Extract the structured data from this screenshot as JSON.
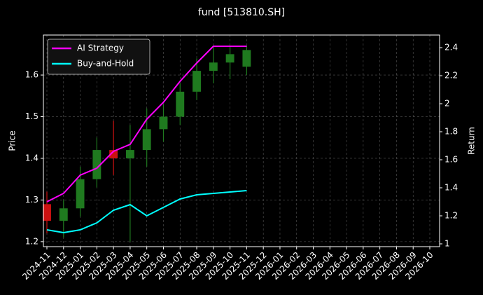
{
  "chart_data": {
    "type": "candlestick",
    "title": "fund [513810.SH]",
    "ylabel": "Price",
    "y2label": "Return",
    "categories": [
      "2024-11",
      "2024-12",
      "2025-01",
      "2025-02",
      "2025-03",
      "2025-04",
      "2025-05",
      "2025-06",
      "2025-07",
      "2025-08",
      "2025-09",
      "2025-10",
      "2025-11",
      "2025-12",
      "2026-01",
      "2026-02",
      "2026-03",
      "2026-04",
      "2026-05",
      "2026-06",
      "2026-07",
      "2026-08",
      "2026-09",
      "2026-10"
    ],
    "candles": {
      "up_color": "#1f7a1f",
      "down_color": "#cc1111",
      "open": [
        1.29,
        1.25,
        1.28,
        1.35,
        1.42,
        1.4,
        1.42,
        1.47,
        1.5,
        1.56,
        1.61,
        1.63,
        1.62,
        null,
        null,
        null,
        null,
        null,
        null,
        null,
        null,
        null,
        null,
        null
      ],
      "high": [
        1.32,
        1.3,
        1.38,
        1.45,
        1.49,
        1.48,
        1.52,
        1.53,
        1.58,
        1.64,
        1.67,
        1.67,
        1.67,
        null,
        null,
        null,
        null,
        null,
        null,
        null,
        null,
        null,
        null,
        null
      ],
      "low": [
        1.22,
        1.21,
        1.26,
        1.33,
        1.36,
        1.2,
        1.38,
        1.44,
        1.48,
        1.54,
        1.58,
        1.59,
        1.6,
        null,
        null,
        null,
        null,
        null,
        null,
        null,
        null,
        null,
        null,
        null
      ],
      "close": [
        1.25,
        1.28,
        1.35,
        1.42,
        1.4,
        1.42,
        1.47,
        1.5,
        1.56,
        1.61,
        1.63,
        1.65,
        1.66,
        null,
        null,
        null,
        null,
        null,
        null,
        null,
        null,
        null,
        null,
        null
      ]
    },
    "series": [
      {
        "name": "AI Strategy",
        "color": "#ff00ff",
        "axis": "y2",
        "values": [
          1.3,
          1.36,
          1.49,
          1.54,
          1.66,
          1.71,
          1.89,
          2.01,
          2.16,
          2.29,
          2.41,
          2.41,
          2.41,
          null,
          null,
          null,
          null,
          null,
          null,
          null,
          null,
          null,
          null,
          null
        ]
      },
      {
        "name": "Buy-and-Hold",
        "color": "#00ffff",
        "axis": "y2",
        "values": [
          1.1,
          1.08,
          1.1,
          1.15,
          1.24,
          1.28,
          1.2,
          1.26,
          1.32,
          1.35,
          1.36,
          1.37,
          1.38,
          null,
          null,
          null,
          null,
          null,
          null,
          null,
          null,
          null,
          null,
          null
        ]
      }
    ],
    "ylim": [
      1.188,
      1.696
    ],
    "yticks": [
      1.2,
      1.3,
      1.4,
      1.5,
      1.6
    ],
    "y2lim": [
      0.98,
      2.49
    ],
    "y2ticks": [
      1.0,
      1.2,
      1.4,
      1.6,
      1.8,
      2.0,
      2.2,
      2.4
    ],
    "grid": true,
    "legend": "upper left"
  }
}
